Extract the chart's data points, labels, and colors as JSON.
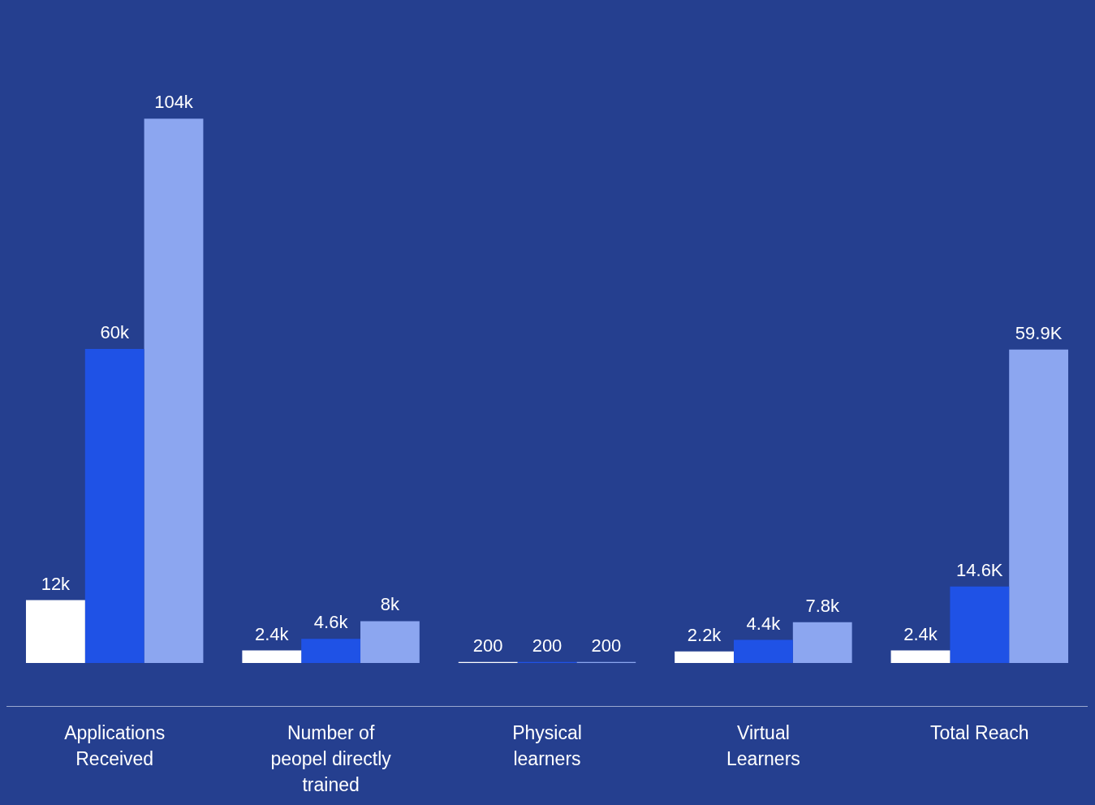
{
  "chart_data": {
    "type": "bar",
    "categories": [
      "Applications Received",
      "Number of peopel directly trained",
      "Physical learners",
      "Virtual Learners",
      "Total Reach"
    ],
    "series": [
      {
        "color": "#ffffff",
        "values": [
          12000,
          2400,
          200,
          2200,
          2400
        ],
        "value_labels": [
          "12k",
          "2.4k",
          "200",
          "2.2k",
          "2.4k"
        ]
      },
      {
        "color": "#1f52e6",
        "values": [
          60000,
          4600,
          200,
          4400,
          14600
        ],
        "value_labels": [
          "60k",
          "4.6k",
          "200",
          "4.4k",
          "14.6K"
        ]
      },
      {
        "color": "#8ca6f0",
        "values": [
          104000,
          8000,
          200,
          7800,
          59900
        ],
        "value_labels": [
          "104k",
          "8k",
          "200",
          "7.8k",
          "59.9K"
        ]
      }
    ],
    "grid": false,
    "legend": false
  }
}
